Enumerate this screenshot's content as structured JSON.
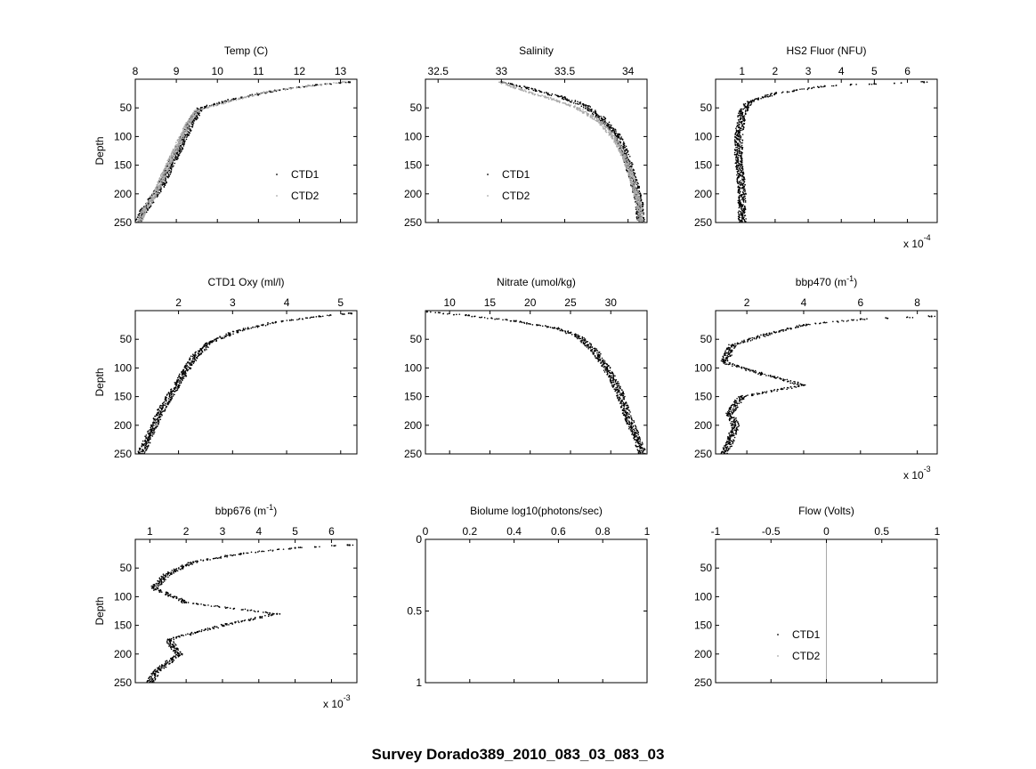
{
  "figure": {
    "suptitle": "Survey Dorado389_2010_083_03_083_03",
    "colors": {
      "ctd1": "#000000",
      "ctd2": "#a8a8a8",
      "axes": "#000000",
      "background": "#ffffff"
    }
  },
  "chart_data": [
    {
      "type": "scatter",
      "title": "Temp (C)",
      "ylabel": "Depth",
      "xlim": [
        8,
        13.4
      ],
      "ylim": [
        0,
        250
      ],
      "y_reversed": true,
      "xaxis_location": "top",
      "xticks": [
        8,
        9,
        10,
        11,
        12,
        13
      ],
      "yticks": [
        50,
        100,
        150,
        200,
        250
      ],
      "legend": {
        "entries": [
          "CTD1",
          "CTD2"
        ],
        "placement": "lower-right"
      },
      "series": [
        {
          "name": "CTD1",
          "x": [
            13.2,
            12.4,
            11.4,
            10.4,
            9.6,
            9.4,
            9.2,
            9.0,
            8.8,
            8.6,
            8.4,
            8.2,
            8.05
          ],
          "y": [
            5,
            10,
            20,
            35,
            50,
            70,
            100,
            130,
            160,
            190,
            210,
            230,
            250
          ]
        },
        {
          "name": "CTD2",
          "x": [
            13.1,
            12.2,
            11.2,
            10.3,
            9.5,
            9.3,
            9.1,
            8.9,
            8.7,
            8.55,
            8.4,
            8.2,
            8.1
          ],
          "y": [
            5,
            12,
            22,
            38,
            55,
            75,
            105,
            135,
            165,
            190,
            210,
            230,
            250
          ]
        }
      ]
    },
    {
      "type": "scatter",
      "title": "Salinity",
      "ylabel": "",
      "xlim": [
        32.4,
        34.15
      ],
      "ylim": [
        0,
        250
      ],
      "y_reversed": true,
      "xaxis_location": "top",
      "xticks": [
        32.5,
        33,
        33.5,
        34
      ],
      "yticks": [
        50,
        100,
        150,
        200,
        250
      ],
      "legend": {
        "entries": [
          "CTD1",
          "CTD2"
        ],
        "placement": "lower-left"
      },
      "series": [
        {
          "name": "CTD1",
          "x": [
            33.0,
            33.2,
            33.45,
            33.65,
            33.8,
            33.92,
            33.98,
            34.02,
            34.06,
            34.09,
            34.1
          ],
          "y": [
            5,
            15,
            30,
            45,
            70,
            100,
            130,
            160,
            190,
            220,
            250
          ]
        },
        {
          "name": "CTD2",
          "x": [
            33.0,
            33.15,
            33.4,
            33.6,
            33.78,
            33.9,
            33.97,
            34.02,
            34.06,
            34.09,
            34.1
          ],
          "y": [
            5,
            18,
            35,
            50,
            75,
            105,
            135,
            165,
            195,
            225,
            250
          ]
        }
      ]
    },
    {
      "type": "scatter",
      "title": "HS2 Fluor (NFU)",
      "ylabel": "",
      "xlim": [
        2e-05,
        0.00069
      ],
      "ylim": [
        0,
        250
      ],
      "y_reversed": true,
      "xaxis_location": "top",
      "xticks": [
        0.0001,
        0.0002,
        0.0003,
        0.0004,
        0.0005,
        0.0006
      ],
      "xtick_labels": [
        "1",
        "2",
        "3",
        "4",
        "5",
        "6"
      ],
      "multiplier": {
        "base": "x 10",
        "exponent": "-4"
      },
      "yticks": [
        50,
        100,
        150,
        200,
        250
      ],
      "legend": null,
      "series": [
        {
          "name": "",
          "x": [
            0.00065,
            0.0005,
            0.00035,
            0.0002,
            0.00012,
            0.0001,
            9e-05,
            9e-05,
            0.0001,
            0.0001,
            0.0001
          ],
          "y": [
            5,
            8,
            12,
            25,
            40,
            60,
            100,
            150,
            190,
            220,
            250
          ]
        }
      ]
    },
    {
      "type": "scatter",
      "title": "CTD1 Oxy (ml/l)",
      "ylabel": "Depth",
      "xlim": [
        1.2,
        5.3
      ],
      "ylim": [
        0,
        250
      ],
      "y_reversed": true,
      "xaxis_location": "top",
      "xticks": [
        2,
        3,
        4,
        5
      ],
      "yticks": [
        50,
        100,
        150,
        200,
        250
      ],
      "legend": null,
      "series": [
        {
          "name": "",
          "x": [
            5.2,
            4.6,
            3.8,
            3.1,
            2.6,
            2.3,
            2.1,
            1.9,
            1.7,
            1.5,
            1.3
          ],
          "y": [
            5,
            10,
            20,
            35,
            55,
            80,
            110,
            140,
            170,
            210,
            250
          ]
        }
      ]
    },
    {
      "type": "scatter",
      "title": "Nitrate (umol/kg)",
      "ylabel": "",
      "xlim": [
        7,
        34.5
      ],
      "ylim": [
        0,
        250
      ],
      "y_reversed": true,
      "xaxis_location": "top",
      "xticks": [
        10,
        15,
        20,
        25,
        30
      ],
      "yticks": [
        50,
        100,
        150,
        200,
        250
      ],
      "legend": null,
      "series": [
        {
          "name": "",
          "x": [
            7.2,
            12,
            18,
            23,
            26,
            28,
            29.5,
            31,
            32,
            33,
            34
          ],
          "y": [
            2,
            8,
            18,
            30,
            45,
            70,
            100,
            140,
            180,
            215,
            250
          ]
        }
      ]
    },
    {
      "type": "scatter",
      "title": "bbp470 (m",
      "title_superscript": "-1",
      "title_suffix": ")",
      "ylabel": "",
      "xlim": [
        0.0009,
        0.0087
      ],
      "ylim": [
        0,
        250
      ],
      "y_reversed": true,
      "xaxis_location": "top",
      "xticks": [
        0.002,
        0.004,
        0.006,
        0.008
      ],
      "xtick_labels": [
        "2",
        "4",
        "6",
        "8"
      ],
      "multiplier": {
        "base": "x 10",
        "exponent": "-3"
      },
      "yticks": [
        50,
        100,
        150,
        200,
        250
      ],
      "legend": null,
      "series": [
        {
          "name": "",
          "x": [
            0.0085,
            0.006,
            0.004,
            0.0028,
            0.0015,
            0.0012,
            0.0025,
            0.004,
            0.0018,
            0.0014,
            0.0016,
            0.0014,
            0.0012
          ],
          "y": [
            10,
            15,
            25,
            40,
            60,
            90,
            110,
            130,
            150,
            180,
            200,
            230,
            250
          ]
        }
      ]
    },
    {
      "type": "scatter",
      "title": "bbp676 (m",
      "title_superscript": "-1",
      "title_suffix": ")",
      "ylabel": "Depth",
      "xlim": [
        0.0006,
        0.0067
      ],
      "ylim": [
        0,
        250
      ],
      "y_reversed": true,
      "xaxis_location": "top",
      "xticks": [
        0.001,
        0.002,
        0.003,
        0.004,
        0.005,
        0.006
      ],
      "xtick_labels": [
        "1",
        "2",
        "3",
        "4",
        "5",
        "6"
      ],
      "multiplier": {
        "base": "x 10",
        "exponent": "-3"
      },
      "yticks": [
        50,
        100,
        150,
        200,
        250
      ],
      "legend": null,
      "series": [
        {
          "name": "",
          "x": [
            0.0065,
            0.005,
            0.0035,
            0.0022,
            0.0015,
            0.0011,
            0.002,
            0.0045,
            0.003,
            0.0015,
            0.0018,
            0.0012,
            0.001
          ],
          "y": [
            10,
            15,
            25,
            40,
            60,
            85,
            110,
            130,
            150,
            175,
            200,
            230,
            250
          ]
        }
      ]
    },
    {
      "type": "scatter",
      "title": "Biolume log10(photons/sec)",
      "ylabel": "",
      "xlim": [
        0,
        1
      ],
      "ylim": [
        0,
        1
      ],
      "y_reversed": true,
      "xaxis_location": "top",
      "xticks": [
        0,
        0.2,
        0.4,
        0.6,
        0.8,
        1
      ],
      "yticks": [
        0,
        0.5,
        1
      ],
      "legend": null,
      "series": []
    },
    {
      "type": "line",
      "title": "Flow (Volts)",
      "ylabel": "",
      "xlim": [
        -1,
        1
      ],
      "ylim": [
        0,
        250
      ],
      "y_reversed": true,
      "xaxis_location": "top",
      "xticks": [
        -1,
        -0.5,
        0,
        0.5,
        1
      ],
      "yticks": [
        50,
        100,
        150,
        200,
        250
      ],
      "legend": {
        "entries": [
          "CTD1",
          "CTD2"
        ],
        "placement": "lower-left"
      },
      "series": [
        {
          "name": "CTD1",
          "x": [
            0,
            0
          ],
          "y": [
            0,
            250
          ]
        },
        {
          "name": "CTD2",
          "x": [
            0,
            0
          ],
          "y": [
            0,
            250
          ]
        }
      ]
    }
  ]
}
